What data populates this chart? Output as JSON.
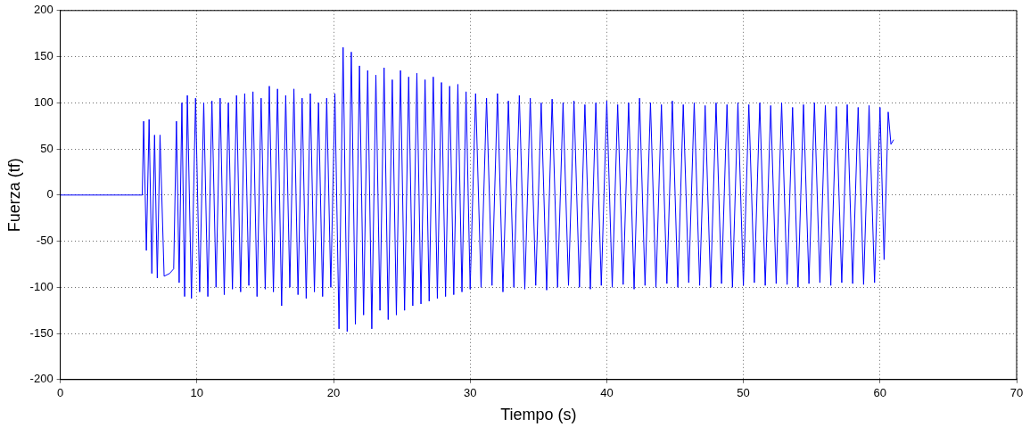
{
  "chart_data": {
    "type": "line",
    "xlabel": "Tiempo (s)",
    "ylabel": "Fuerza (tf)",
    "xlim": [
      0,
      70
    ],
    "xticks": [
      0,
      10,
      20,
      30,
      40,
      50,
      60,
      70
    ],
    "ylim": [
      -200,
      200
    ],
    "yticks": [
      -200,
      -150,
      -100,
      -50,
      0,
      50,
      100,
      150,
      200
    ],
    "grid": true,
    "marker": "none",
    "line_style": "solid",
    "series": [
      {
        "color": "#0000ff",
        "x": [
          0,
          6.0,
          6.1,
          6.3,
          6.5,
          6.7,
          6.9,
          7.1,
          7.3,
          7.6,
          8.0,
          8.3,
          8.5,
          8.7,
          8.9,
          9.1,
          9.3,
          9.6,
          9.9,
          10.2,
          10.5,
          10.8,
          11.1,
          11.4,
          11.7,
          12.0,
          12.3,
          12.6,
          12.9,
          13.2,
          13.5,
          13.8,
          14.1,
          14.4,
          14.7,
          15.0,
          15.3,
          15.6,
          15.9,
          16.2,
          16.5,
          16.8,
          17.1,
          17.4,
          17.7,
          18.0,
          18.3,
          18.6,
          18.9,
          19.2,
          19.5,
          19.8,
          20.1,
          20.4,
          20.7,
          21.0,
          21.3,
          21.6,
          21.9,
          22.2,
          22.5,
          22.8,
          23.1,
          23.4,
          23.7,
          24.0,
          24.3,
          24.6,
          24.9,
          25.2,
          25.5,
          25.8,
          26.1,
          26.4,
          26.7,
          27.0,
          27.3,
          27.6,
          27.9,
          28.2,
          28.5,
          28.8,
          29.1,
          29.4,
          29.7,
          30.0,
          30.4,
          30.8,
          31.2,
          31.6,
          32.0,
          32.4,
          32.8,
          33.2,
          33.6,
          34.0,
          34.4,
          34.8,
          35.2,
          35.6,
          36.0,
          36.4,
          36.8,
          37.2,
          37.6,
          38.0,
          38.4,
          38.8,
          39.2,
          39.6,
          40.0,
          40.4,
          40.8,
          41.2,
          41.6,
          42.0,
          42.4,
          42.8,
          43.2,
          43.6,
          44.0,
          44.4,
          44.8,
          45.2,
          45.6,
          46.0,
          46.4,
          46.8,
          47.2,
          47.6,
          48.0,
          48.4,
          48.8,
          49.2,
          49.6,
          50.0,
          50.4,
          50.8,
          51.2,
          51.6,
          52.0,
          52.4,
          52.8,
          53.2,
          53.6,
          54.0,
          54.4,
          54.8,
          55.2,
          55.6,
          56.0,
          56.4,
          56.8,
          57.2,
          57.6,
          58.0,
          58.4,
          58.8,
          59.2,
          59.6,
          60.0,
          60.3,
          60.6,
          60.8,
          61.0
        ],
        "values": [
          0,
          0,
          80,
          -60,
          82,
          -85,
          65,
          -90,
          65,
          -88,
          -85,
          -80,
          80,
          -95,
          100,
          -110,
          108,
          -112,
          105,
          -105,
          100,
          -110,
          102,
          -100,
          105,
          -108,
          100,
          -102,
          108,
          -105,
          110,
          -98,
          112,
          -110,
          105,
          -102,
          118,
          -105,
          115,
          -120,
          108,
          -100,
          115,
          -108,
          105,
          -112,
          110,
          -105,
          100,
          -110,
          105,
          -100,
          110,
          -145,
          160,
          -148,
          155,
          -140,
          140,
          -130,
          135,
          -145,
          130,
          -125,
          138,
          -135,
          125,
          -130,
          135,
          -125,
          128,
          -120,
          132,
          -118,
          125,
          -115,
          128,
          -112,
          122,
          -110,
          118,
          -108,
          120,
          -105,
          112,
          -102,
          110,
          -100,
          105,
          -98,
          110,
          -105,
          102,
          -100,
          108,
          -102,
          105,
          -98,
          100,
          -103,
          104,
          -100,
          100,
          -98,
          102,
          -100,
          98,
          -102,
          100,
          -98,
          102,
          -100,
          98,
          -97,
          100,
          -102,
          105,
          -98,
          100,
          -100,
          98,
          -96,
          102,
          -100,
          98,
          -95,
          100,
          -98,
          97,
          -100,
          100,
          -96,
          98,
          -100,
          100,
          -98,
          98,
          -95,
          100,
          -98,
          97,
          -96,
          100,
          -97,
          95,
          -100,
          98,
          -96,
          100,
          -95,
          97,
          -98,
          96,
          -95,
          98,
          -96,
          95,
          -97,
          97,
          -95,
          95,
          -70,
          90,
          55,
          60
        ]
      }
    ]
  }
}
